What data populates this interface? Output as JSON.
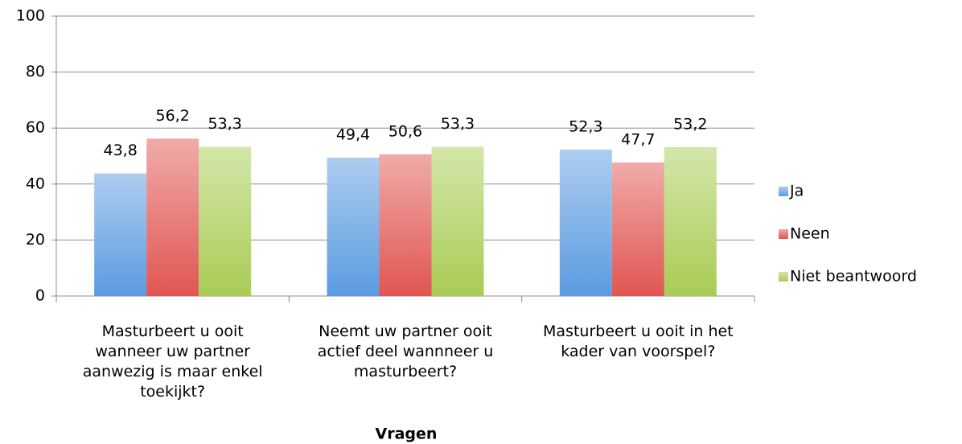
{
  "chart_data": {
    "type": "bar",
    "x_label": "Vragen",
    "categories": [
      "Masturbeert u ooit wanneer uw partner aanwezig is maar enkel toekijkt?",
      "Neemt uw partner ooit actief deel wannneer u masturbeert?",
      "Masturbeert u ooit in het kader van voorspel?"
    ],
    "series": [
      {
        "name": "Ja",
        "color": "#5b9be0",
        "values": [
          43.8,
          49.4,
          52.3
        ],
        "value_labels": [
          "43,8",
          "49,4",
          "52,3"
        ]
      },
      {
        "name": "Neen",
        "color": "#e05652",
        "values": [
          56.2,
          50.6,
          47.7
        ],
        "value_labels": [
          "56,2",
          "50,6",
          "47,7"
        ]
      },
      {
        "name": "Niet beantwoord",
        "color": "#a9cc55",
        "values": [
          53.3,
          53.3,
          53.2
        ],
        "value_labels": [
          "53,3",
          "53,3",
          "53,2"
        ]
      }
    ],
    "ylim": [
      0,
      100
    ],
    "yticks": [
      0,
      20,
      40,
      60,
      80,
      100
    ],
    "grid": true,
    "legend": "right"
  }
}
